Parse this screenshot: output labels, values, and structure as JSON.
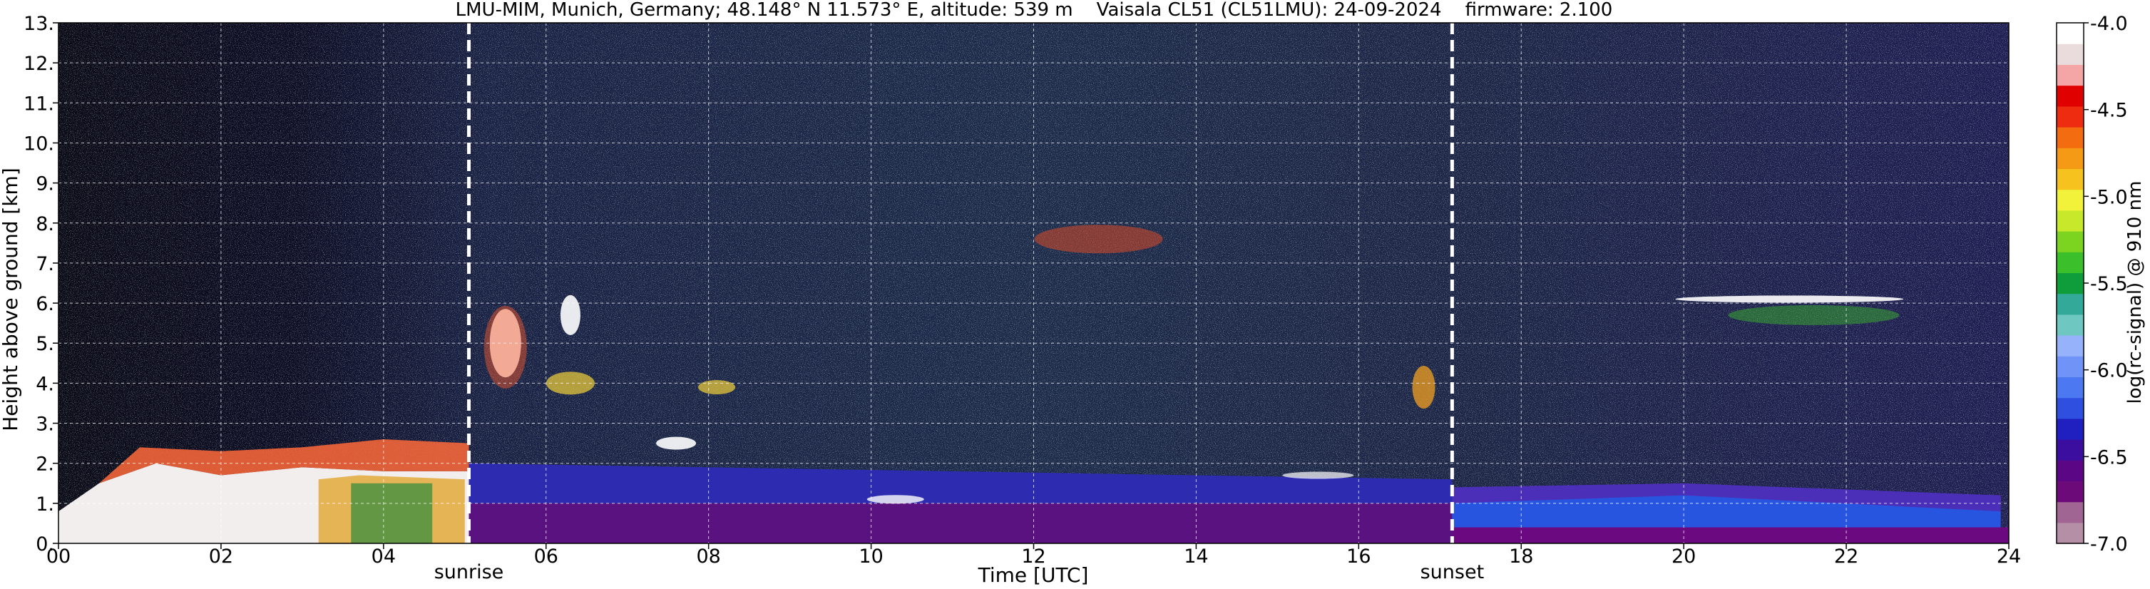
{
  "chart_data": {
    "type": "heatmap",
    "title": "LMU-MIM, Munich, Germany; 48.148° N 11.573° E, altitude: 539 m    Vaisala CL51 (CL51LMU): 24-09-2024    firmware: 2.100",
    "xlabel": "Time [UTC]",
    "ylabel": "Height above ground [km]",
    "xlim": [
      0,
      24
    ],
    "ylim": [
      0,
      13
    ],
    "x_ticks": [
      "00",
      "02",
      "04",
      "06",
      "08",
      "10",
      "12",
      "14",
      "16",
      "18",
      "20",
      "22",
      "24"
    ],
    "y_ticks": [
      "0.",
      "1.",
      "2.",
      "3.",
      "4.",
      "5.",
      "6.",
      "7.",
      "8.",
      "9.",
      "10.",
      "11.",
      "12.",
      "13."
    ],
    "grid": true,
    "markers": [
      {
        "label": "sunrise",
        "x": 5.05
      },
      {
        "label": "sunset",
        "x": 17.15
      }
    ],
    "colorbar": {
      "label": "log(rc-signal) @ 910 nm",
      "range": [
        -7.0,
        -4.0
      ],
      "ticks": [
        "-4.0",
        "-4.5",
        "-5.0",
        "-5.5",
        "-6.0",
        "-6.5",
        "-7.0"
      ],
      "colors": [
        "#b58fa6",
        "#a06592",
        "#6c0a7a",
        "#5a0685",
        "#3b0ea0",
        "#2020c0",
        "#2f4fe0",
        "#4c78f2",
        "#6f93f7",
        "#95b2fa",
        "#6fc7c1",
        "#33aa99",
        "#0f9c3a",
        "#3bbf2a",
        "#7dd420",
        "#c8e82b",
        "#f2f23a",
        "#f5c21e",
        "#f59a14",
        "#f46c10",
        "#ee2c10",
        "#e00000",
        "#f4a6a6",
        "#eadcdc",
        "#ffffff"
      ]
    }
  }
}
